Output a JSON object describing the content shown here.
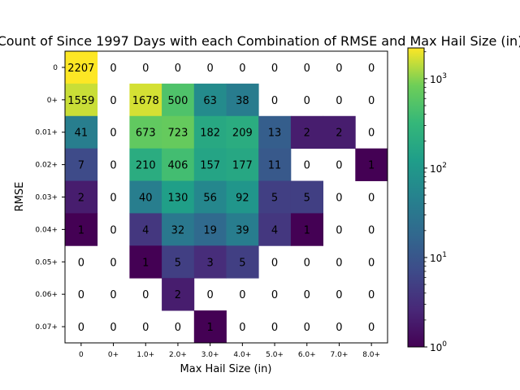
{
  "chart_data": {
    "type": "heatmap",
    "title": "Count of Since 1997 Days with each Combination of RMSE and Max Hail Size (in)",
    "xlabel": "Max Hail Size (in)",
    "ylabel": "RMSE",
    "x_categories": [
      "0",
      "0+",
      "1.0+",
      "2.0+",
      "3.0+",
      "4.0+",
      "5.0+",
      "6.0+",
      "7.0+",
      "8.0+"
    ],
    "y_categories": [
      "0",
      "0+",
      "0.01+",
      "0.02+",
      "0.03+",
      "0.04+",
      "0.05+",
      "0.06+",
      "0.07+"
    ],
    "values": [
      [
        2207,
        0,
        0,
        0,
        0,
        0,
        0,
        0,
        0,
        0
      ],
      [
        1559,
        0,
        1678,
        500,
        63,
        38,
        0,
        0,
        0,
        0
      ],
      [
        41,
        0,
        673,
        723,
        182,
        209,
        13,
        2,
        2,
        0
      ],
      [
        7,
        0,
        210,
        406,
        157,
        177,
        11,
        0,
        0,
        1
      ],
      [
        2,
        0,
        40,
        130,
        56,
        92,
        5,
        5,
        0,
        0
      ],
      [
        1,
        0,
        4,
        32,
        19,
        39,
        4,
        1,
        0,
        0
      ],
      [
        0,
        0,
        1,
        5,
        3,
        5,
        0,
        0,
        0,
        0
      ],
      [
        0,
        0,
        0,
        2,
        0,
        0,
        0,
        0,
        0,
        0
      ],
      [
        0,
        0,
        0,
        0,
        1,
        0,
        0,
        0,
        0,
        0
      ]
    ],
    "colorscale": "viridis",
    "color_scale_type": "log",
    "color_range": [
      1,
      2207
    ],
    "colorbar_ticks": [
      {
        "base": "10",
        "exp": "0",
        "value": 1
      },
      {
        "base": "10",
        "exp": "1",
        "value": 10
      },
      {
        "base": "10",
        "exp": "2",
        "value": 100
      },
      {
        "base": "10",
        "exp": "3",
        "value": 1000
      }
    ],
    "zero_cells": "blank",
    "grid": false
  }
}
